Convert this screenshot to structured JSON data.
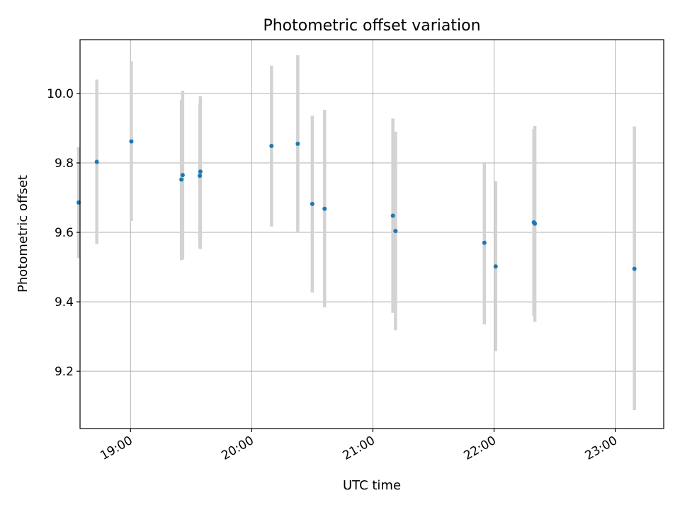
{
  "chart_data": {
    "type": "scatter",
    "title": "Photometric offset variation",
    "xlabel": "UTC time",
    "ylabel": "Photometric offset",
    "xlim_minutes": [
      1115,
      1404
    ],
    "ylim": [
      9.035,
      10.155
    ],
    "grid": true,
    "colors": {
      "point": "#1f77b4",
      "errorbar": "#d3d3d3",
      "grid": "#b0b0b0",
      "axes": "#000000"
    },
    "x_ticks": [
      {
        "minutes": 1140,
        "label": "19:00"
      },
      {
        "minutes": 1200,
        "label": "20:00"
      },
      {
        "minutes": 1260,
        "label": "21:00"
      },
      {
        "minutes": 1320,
        "label": "22:00"
      },
      {
        "minutes": 1380,
        "label": "23:00"
      }
    ],
    "y_ticks": [
      {
        "value": 9.2,
        "label": "9.2"
      },
      {
        "value": 9.4,
        "label": "9.4"
      },
      {
        "value": 9.6,
        "label": "9.6"
      },
      {
        "value": 9.8,
        "label": "9.8"
      },
      {
        "value": 10.0,
        "label": "10.0"
      }
    ],
    "points": [
      {
        "minutes": 1114.3,
        "y": 9.686,
        "low": 9.526,
        "high": 9.846
      },
      {
        "minutes": 1123.3,
        "y": 9.803,
        "low": 9.566,
        "high": 10.04
      },
      {
        "minutes": 1140.4,
        "y": 9.862,
        "low": 9.633,
        "high": 10.093
      },
      {
        "minutes": 1165.2,
        "y": 9.752,
        "low": 9.52,
        "high": 9.982
      },
      {
        "minutes": 1165.8,
        "y": 9.765,
        "low": 9.522,
        "high": 10.008
      },
      {
        "minutes": 1174.3,
        "y": 9.763,
        "low": 9.555,
        "high": 9.97
      },
      {
        "minutes": 1174.6,
        "y": 9.775,
        "low": 9.552,
        "high": 9.992
      },
      {
        "minutes": 1209.8,
        "y": 9.849,
        "low": 9.617,
        "high": 10.08
      },
      {
        "minutes": 1222.8,
        "y": 9.855,
        "low": 9.6,
        "high": 10.11
      },
      {
        "minutes": 1230.0,
        "y": 9.682,
        "low": 9.427,
        "high": 9.936
      },
      {
        "minutes": 1236.1,
        "y": 9.668,
        "low": 9.384,
        "high": 9.953
      },
      {
        "minutes": 1269.9,
        "y": 9.648,
        "low": 9.368,
        "high": 9.928
      },
      {
        "minutes": 1271.2,
        "y": 9.604,
        "low": 9.318,
        "high": 9.89
      },
      {
        "minutes": 1315.2,
        "y": 9.57,
        "low": 9.335,
        "high": 9.802
      },
      {
        "minutes": 1320.8,
        "y": 9.502,
        "low": 9.258,
        "high": 9.747
      },
      {
        "minutes": 1339.7,
        "y": 9.629,
        "low": 9.36,
        "high": 9.898
      },
      {
        "minutes": 1340.2,
        "y": 9.625,
        "low": 9.342,
        "high": 9.906
      },
      {
        "minutes": 1389.5,
        "y": 9.495,
        "low": 9.088,
        "high": 9.905
      }
    ]
  }
}
